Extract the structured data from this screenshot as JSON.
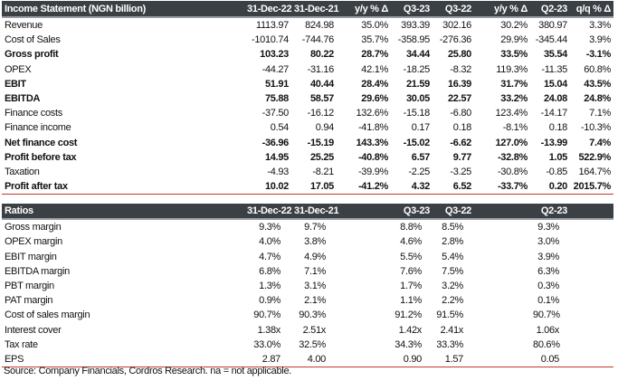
{
  "income": {
    "title": "Income Statement (NGN billion)",
    "columns": [
      "31-Dec-22",
      "31-Dec-21",
      "y/y % Δ",
      "Q3-23",
      "Q3-22",
      "y/y % Δ",
      "Q2-23",
      "q/q % Δ"
    ],
    "rows": [
      {
        "label": "Revenue",
        "bold": false,
        "values": [
          "1113.97",
          "824.98",
          "35.0%",
          "393.39",
          "302.16",
          "30.2%",
          "380.97",
          "3.3%"
        ]
      },
      {
        "label": "Cost of Sales",
        "bold": false,
        "values": [
          "-1010.74",
          "-744.76",
          "35.7%",
          "-358.95",
          "-276.36",
          "29.9%",
          "-345.44",
          "3.9%"
        ]
      },
      {
        "label": "Gross profit",
        "bold": true,
        "values": [
          "103.23",
          "80.22",
          "28.7%",
          "34.44",
          "25.80",
          "33.5%",
          "35.54",
          "-3.1%"
        ]
      },
      {
        "label": "OPEX",
        "bold": false,
        "values": [
          "-44.27",
          "-31.16",
          "42.1%",
          "-18.25",
          "-8.32",
          "119.3%",
          "-11.35",
          "60.8%"
        ]
      },
      {
        "label": "EBIT",
        "bold": true,
        "values": [
          "51.91",
          "40.44",
          "28.4%",
          "21.59",
          "16.39",
          "31.7%",
          "15.04",
          "43.5%"
        ]
      },
      {
        "label": "EBITDA",
        "bold": true,
        "values": [
          "75.88",
          "58.57",
          "29.6%",
          "30.05",
          "22.57",
          "33.2%",
          "24.08",
          "24.8%"
        ]
      },
      {
        "label": "Finance costs",
        "bold": false,
        "values": [
          "-37.50",
          "-16.12",
          "132.6%",
          "-15.18",
          "-6.80",
          "123.4%",
          "-14.17",
          "7.1%"
        ]
      },
      {
        "label": "Finance income",
        "bold": false,
        "values": [
          "0.54",
          "0.94",
          "-41.8%",
          "0.17",
          "0.18",
          "-8.1%",
          "0.18",
          "-10.3%"
        ]
      },
      {
        "label": "Net finance cost",
        "bold": true,
        "values": [
          "-36.96",
          "-15.19",
          "143.3%",
          "-15.02",
          "-6.62",
          "127.0%",
          "-13.99",
          "7.4%"
        ]
      },
      {
        "label": "Profit before tax",
        "bold": true,
        "values": [
          "14.95",
          "25.25",
          "-40.8%",
          "6.57",
          "9.77",
          "-32.8%",
          "1.05",
          "522.9%"
        ]
      },
      {
        "label": "Taxation",
        "bold": false,
        "values": [
          "-4.93",
          "-8.21",
          "-39.9%",
          "-2.25",
          "-3.25",
          "-30.8%",
          "-0.85",
          "164.7%"
        ]
      },
      {
        "label": "Profit after tax",
        "bold": true,
        "values": [
          "10.02",
          "17.05",
          "-41.2%",
          "4.32",
          "6.52",
          "-33.7%",
          "0.20",
          "2015.7%"
        ]
      }
    ]
  },
  "ratios": {
    "title": "Ratios",
    "columns": [
      "31-Dec-22",
      "31-Dec-21",
      "",
      "Q3-23",
      "Q3-22",
      "",
      "Q2-23",
      ""
    ],
    "rows": [
      {
        "label": "Gross margin",
        "values": [
          "9.3%",
          "9.7%",
          "",
          "8.8%",
          "8.5%",
          "",
          "9.3%",
          ""
        ]
      },
      {
        "label": "OPEX margin",
        "values": [
          "4.0%",
          "3.8%",
          "",
          "4.6%",
          "2.8%",
          "",
          "3.0%",
          ""
        ]
      },
      {
        "label": "EBIT margin",
        "values": [
          "4.7%",
          "4.9%",
          "",
          "5.5%",
          "5.4%",
          "",
          "3.9%",
          ""
        ]
      },
      {
        "label": "EBITDA margin",
        "values": [
          "6.8%",
          "7.1%",
          "",
          "7.6%",
          "7.5%",
          "",
          "6.3%",
          ""
        ]
      },
      {
        "label": "PBT margin",
        "values": [
          "1.3%",
          "3.1%",
          "",
          "1.7%",
          "3.2%",
          "",
          "0.3%",
          ""
        ]
      },
      {
        "label": "PAT margin",
        "values": [
          "0.9%",
          "2.1%",
          "",
          "1.1%",
          "2.2%",
          "",
          "0.1%",
          ""
        ]
      },
      {
        "label": "Cost of sales margin",
        "values": [
          "90.7%",
          "90.3%",
          "",
          "91.2%",
          "91.5%",
          "",
          "90.7%",
          ""
        ]
      },
      {
        "label": "Interest cover",
        "values": [
          "1.38x",
          "2.51x",
          "",
          "1.42x",
          "2.41x",
          "",
          "1.06x",
          ""
        ]
      },
      {
        "label": "Tax rate",
        "values": [
          "33.0%",
          "32.5%",
          "",
          "34.3%",
          "33.3%",
          "",
          "80.6%",
          ""
        ]
      },
      {
        "label": "EPS",
        "values": [
          "2.87",
          "4.00",
          "",
          "0.90",
          "1.57",
          "",
          "0.05",
          ""
        ]
      }
    ]
  },
  "source": "Source: Company Financials, Cordros Research. na = not applicable."
}
